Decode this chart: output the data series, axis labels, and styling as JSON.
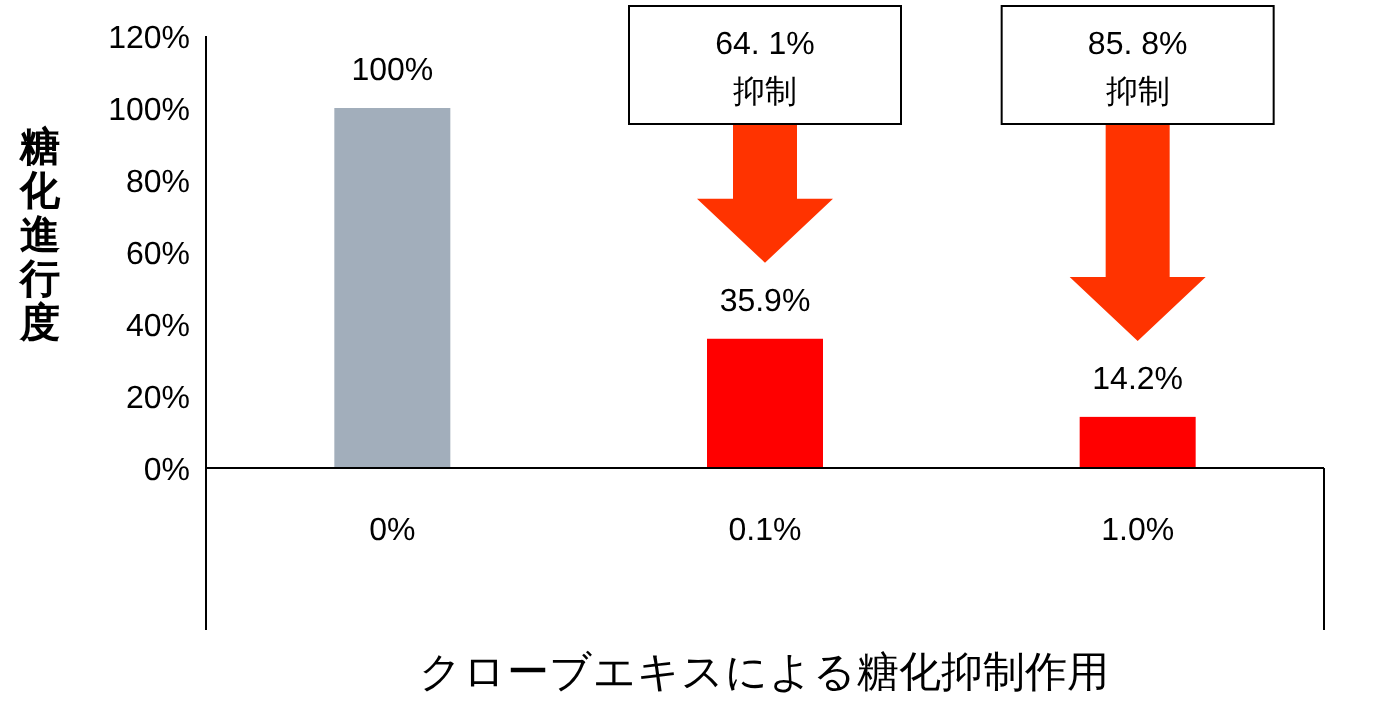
{
  "chart_data": {
    "type": "bar",
    "xlabel": "クローブエキスによる糖化抑制作用",
    "ylabel": "糖化進行度",
    "categories": [
      "0%",
      "0.1%",
      "1.0%"
    ],
    "values": [
      100,
      35.9,
      14.2
    ],
    "colors": [
      "#a2aebb",
      "#ff0000",
      "#ff0000"
    ],
    "value_labels": [
      "100%",
      "35.9%",
      "14.2%"
    ],
    "ylim": [
      0,
      120
    ],
    "yticks": [
      {
        "value": 0,
        "label": "0%"
      },
      {
        "value": 20,
        "label": "20%"
      },
      {
        "value": 40,
        "label": "40%"
      },
      {
        "value": 60,
        "label": "60%"
      },
      {
        "value": 80,
        "label": "80%"
      },
      {
        "value": 100,
        "label": "100%"
      },
      {
        "value": 120,
        "label": "120%"
      }
    ],
    "annotations": [
      "64. 1%\n抑制",
      "85. 8%\n抑制"
    ],
    "grid": false
  }
}
